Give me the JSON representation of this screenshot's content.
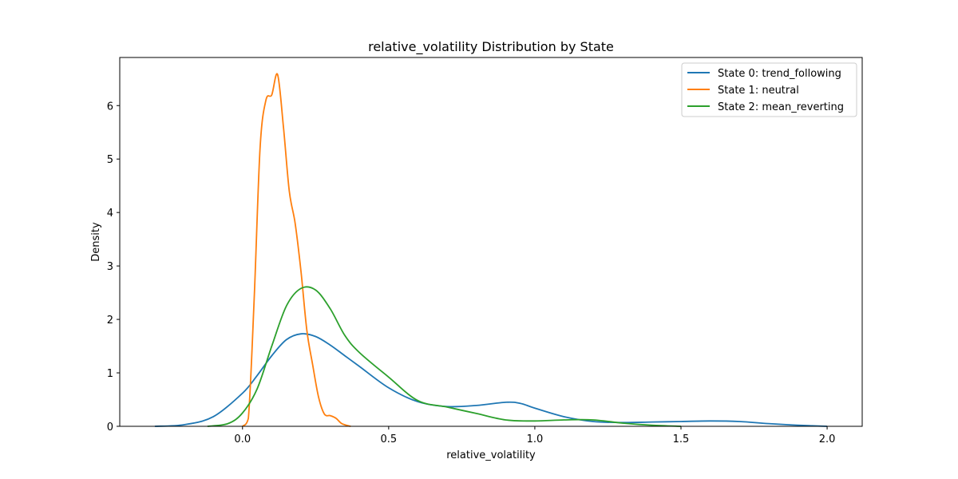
{
  "chart_data": {
    "type": "line",
    "title": "relative_volatility Distribution by State",
    "xlabel": "relative_volatility",
    "ylabel": "Density",
    "xlim": [
      -0.42,
      2.12
    ],
    "ylim": [
      0,
      6.9
    ],
    "xticks": [
      0.0,
      0.5,
      1.0,
      1.5,
      2.0
    ],
    "xtick_labels": [
      "0.0",
      "0.5",
      "1.0",
      "1.5",
      "2.0"
    ],
    "yticks": [
      0,
      1,
      2,
      3,
      4,
      5,
      6
    ],
    "ytick_labels": [
      "0",
      "1",
      "2",
      "3",
      "4",
      "5",
      "6"
    ],
    "grid": false,
    "legend_position": "top-right",
    "series": [
      {
        "name": "State 0: trend_following",
        "color": "#1f77b4",
        "x": [
          -0.3,
          -0.2,
          -0.1,
          0.0,
          0.05,
          0.1,
          0.15,
          0.2,
          0.25,
          0.3,
          0.35,
          0.4,
          0.5,
          0.6,
          0.7,
          0.8,
          0.9,
          0.95,
          1.0,
          1.1,
          1.2,
          1.3,
          1.4,
          1.5,
          1.6,
          1.7,
          1.8,
          1.9,
          2.0
        ],
        "y": [
          0.0,
          0.03,
          0.18,
          0.62,
          0.95,
          1.32,
          1.62,
          1.73,
          1.68,
          1.52,
          1.32,
          1.12,
          0.72,
          0.46,
          0.37,
          0.39,
          0.45,
          0.43,
          0.34,
          0.18,
          0.09,
          0.07,
          0.08,
          0.09,
          0.1,
          0.09,
          0.05,
          0.02,
          0.0
        ]
      },
      {
        "name": "State 1: neutral",
        "color": "#ff7f0e",
        "x": [
          0.0,
          0.02,
          0.04,
          0.06,
          0.08,
          0.1,
          0.12,
          0.14,
          0.16,
          0.18,
          0.2,
          0.22,
          0.24,
          0.26,
          0.28,
          0.3,
          0.32,
          0.34,
          0.37
        ],
        "y": [
          0.0,
          0.15,
          2.4,
          5.2,
          6.1,
          6.2,
          6.58,
          5.6,
          4.4,
          3.8,
          2.9,
          1.8,
          1.15,
          0.55,
          0.23,
          0.2,
          0.15,
          0.05,
          0.0
        ]
      },
      {
        "name": "State 2: mean_reverting",
        "color": "#2ca02c",
        "x": [
          -0.12,
          -0.05,
          0.0,
          0.05,
          0.1,
          0.15,
          0.2,
          0.25,
          0.3,
          0.35,
          0.4,
          0.5,
          0.6,
          0.7,
          0.8,
          0.9,
          1.0,
          1.1,
          1.2,
          1.3,
          1.4,
          1.5
        ],
        "y": [
          0.0,
          0.05,
          0.25,
          0.7,
          1.5,
          2.25,
          2.58,
          2.55,
          2.2,
          1.7,
          1.38,
          0.92,
          0.48,
          0.36,
          0.24,
          0.12,
          0.1,
          0.12,
          0.12,
          0.06,
          0.02,
          0.0
        ]
      }
    ]
  }
}
